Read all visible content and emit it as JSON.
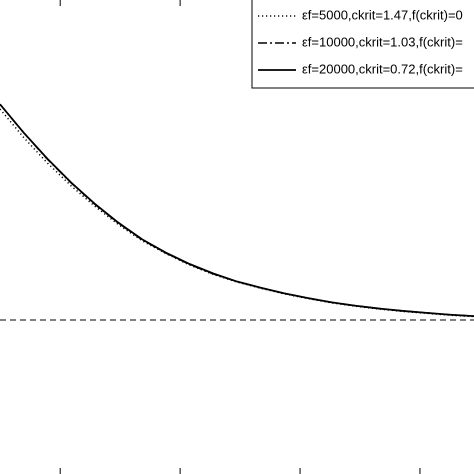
{
  "chart_data": {
    "type": "line",
    "x": [
      0,
      0.05,
      0.1,
      0.15,
      0.2,
      0.25,
      0.3,
      0.35,
      0.4,
      0.45,
      0.5,
      0.55,
      0.6,
      0.65,
      0.7,
      0.75,
      0.8,
      0.85,
      0.9,
      0.95,
      1
    ],
    "series": [
      {
        "name": "εf=5000,ckrit=1.47,f(ckrit)=0",
        "color": "#000000",
        "dash": "dotted",
        "values": [
          0.77,
          0.71,
          0.656,
          0.608,
          0.565,
          0.526,
          0.492,
          0.465,
          0.441,
          0.421,
          0.405,
          0.392,
          0.38,
          0.37,
          0.361,
          0.354,
          0.348,
          0.343,
          0.339,
          0.335,
          0.332
        ]
      },
      {
        "name": "εf=10000,ckrit=1.03,f(ckrit)=",
        "color": "#000000",
        "dash": "dashdot",
        "values": [
          0.78,
          0.72,
          0.664,
          0.614,
          0.569,
          0.529,
          0.494,
          0.466,
          0.442,
          0.422,
          0.406,
          0.393,
          0.381,
          0.371,
          0.362,
          0.355,
          0.349,
          0.344,
          0.34,
          0.336,
          0.333
        ]
      },
      {
        "name": "εf=20000,ckrit=0.72,f(ckrit)=",
        "color": "#000000",
        "dash": "solid",
        "values": [
          0.78,
          0.72,
          0.665,
          0.615,
          0.57,
          0.53,
          0.495,
          0.467,
          0.443,
          0.423,
          0.406,
          0.393,
          0.381,
          0.371,
          0.362,
          0.355,
          0.349,
          0.344,
          0.34,
          0.336,
          0.333
        ]
      }
    ],
    "reference_line": 0.325,
    "xlim": [
      0,
      1
    ],
    "ylim": [
      0,
      1
    ],
    "xticks": [
      0.127,
      0.38,
      0.633,
      0.886
    ],
    "legend": "upper right"
  }
}
